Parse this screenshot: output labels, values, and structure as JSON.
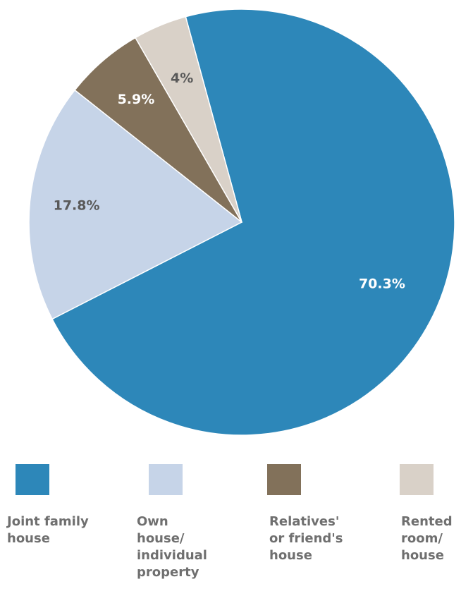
{
  "chart_data": {
    "type": "pie",
    "slices": [
      {
        "label": "Joint family house",
        "value": 70.3,
        "value_label": "70.3%",
        "color": "#2d87b9",
        "label_color": "#ffffff"
      },
      {
        "label": "Own house/ individual property",
        "value": 17.8,
        "value_label": "17.8%",
        "color": "#c6d4e8",
        "label_color": "#595959"
      },
      {
        "label": "Relatives' or friend's house",
        "value": 5.9,
        "value_label": "5.9%",
        "color": "#82715a",
        "label_color": "#ffffff"
      },
      {
        "label": "Rented room/ house",
        "value": 4,
        "value_label": "4%",
        "color": "#d9d1c8",
        "label_color": "#595959"
      }
    ],
    "legend": {
      "placement": "bottom",
      "items": [
        {
          "lines": [
            "Joint family",
            "house"
          ],
          "color": "#2d87b9"
        },
        {
          "lines": [
            "Own",
            "house/",
            "individual",
            "property"
          ],
          "color": "#c6d4e8"
        },
        {
          "lines": [
            "Relatives'",
            "or friend's",
            "house"
          ],
          "color": "#82715a"
        },
        {
          "lines": [
            "Rented",
            "room/",
            "house"
          ],
          "color": "#d9d1c8"
        }
      ]
    }
  }
}
